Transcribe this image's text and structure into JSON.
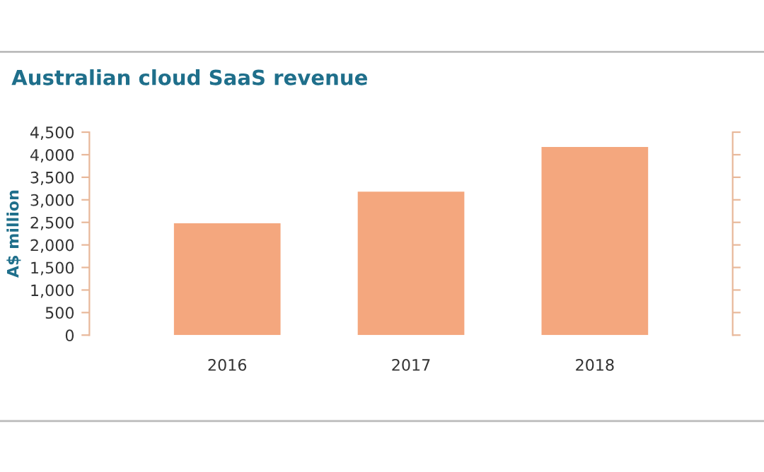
{
  "chart_data": {
    "type": "bar",
    "title": "Australian cloud SaaS revenue",
    "ylabel": "A$ million",
    "categories": [
      "2016",
      "2017",
      "2018"
    ],
    "values": [
      2480,
      3180,
      4170
    ],
    "color": "#f4a77e",
    "ylim": [
      0,
      4500
    ],
    "yticks": [
      {
        "value": 0,
        "label": "0"
      },
      {
        "value": 500,
        "label": "500"
      },
      {
        "value": 1000,
        "label": "1,000"
      },
      {
        "value": 1500,
        "label": "1,500"
      },
      {
        "value": 2000,
        "label": "2,000"
      },
      {
        "value": 2500,
        "label": "2,500"
      },
      {
        "value": 3000,
        "label": "3,000"
      },
      {
        "value": 3500,
        "label": "3,500"
      },
      {
        "value": 4000,
        "label": "4,000"
      },
      {
        "value": 4500,
        "label": "4,500"
      }
    ],
    "grid": false
  }
}
